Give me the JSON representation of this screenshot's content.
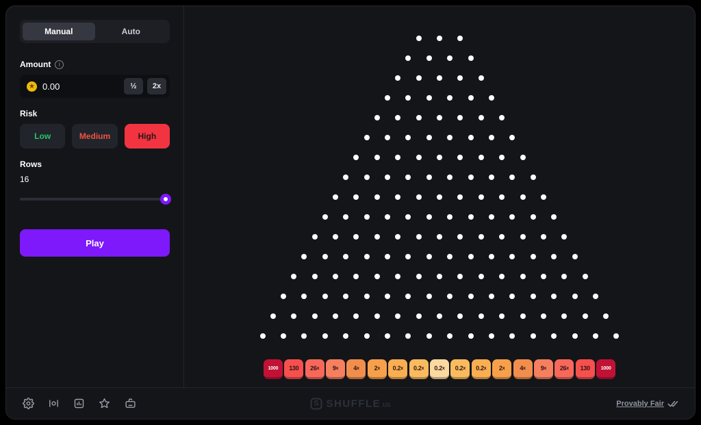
{
  "sidebar": {
    "tabs": [
      {
        "label": "Manual",
        "active": true
      },
      {
        "label": "Auto",
        "active": false
      }
    ],
    "amount": {
      "label": "Amount",
      "value": "0.00",
      "half_button": "½",
      "double_button": "2x"
    },
    "risk": {
      "label": "Risk",
      "options": [
        {
          "label": "Low",
          "selected": false
        },
        {
          "label": "Medium",
          "selected": false
        },
        {
          "label": "High",
          "selected": true
        }
      ]
    },
    "rows": {
      "label": "Rows",
      "value": "16"
    },
    "play_button": "Play"
  },
  "board": {
    "peg_rows": 16,
    "top_row_pegs": 3,
    "peg_color": "#ffffff",
    "buckets": [
      {
        "value": "1000",
        "suffix": "",
        "bg": "#c11236",
        "fg": "#ffffff"
      },
      {
        "value": "130",
        "suffix": "",
        "bg": "#f6504e",
        "fg": "#33150f"
      },
      {
        "value": "26",
        "suffix": "x",
        "bg": "#f8685a",
        "fg": "#33150f"
      },
      {
        "value": "9",
        "suffix": "x",
        "bg": "#f67f5f",
        "fg": "#33150f"
      },
      {
        "value": "4",
        "suffix": "x",
        "bg": "#f28e4d",
        "fg": "#33150f"
      },
      {
        "value": "2",
        "suffix": "x",
        "bg": "#f7a04b",
        "fg": "#33150f"
      },
      {
        "value": "0.2",
        "suffix": "x",
        "bg": "#f9ae52",
        "fg": "#33150f"
      },
      {
        "value": "0.2",
        "suffix": "x",
        "bg": "#fabb5e",
        "fg": "#33150f"
      },
      {
        "value": "0.2",
        "suffix": "x",
        "bg": "#fbd9a0",
        "fg": "#33150f"
      },
      {
        "value": "0.2",
        "suffix": "x",
        "bg": "#fabb5e",
        "fg": "#33150f"
      },
      {
        "value": "0.2",
        "suffix": "x",
        "bg": "#f9ae52",
        "fg": "#33150f"
      },
      {
        "value": "2",
        "suffix": "x",
        "bg": "#f7a04b",
        "fg": "#33150f"
      },
      {
        "value": "4",
        "suffix": "x",
        "bg": "#f28e4d",
        "fg": "#33150f"
      },
      {
        "value": "9",
        "suffix": "x",
        "bg": "#f67f5f",
        "fg": "#33150f"
      },
      {
        "value": "26",
        "suffix": "x",
        "bg": "#f8685a",
        "fg": "#33150f"
      },
      {
        "value": "130",
        "suffix": "",
        "bg": "#f6504e",
        "fg": "#33150f"
      },
      {
        "value": "1000",
        "suffix": "",
        "bg": "#c11236",
        "fg": "#ffffff"
      }
    ]
  },
  "footer": {
    "icons": [
      "settings-gear",
      "sound",
      "stats",
      "favorite-star",
      "hotkeys-keyboard"
    ],
    "logo_text": "SHUFFLE",
    "logo_suffix": ".US",
    "logo_mark": "S",
    "provably_fair_label": "Provably Fair"
  },
  "colors": {
    "accent_purple": "#7d19fa",
    "risk_high_red": "#f23440",
    "risk_low_green": "#26c567",
    "risk_medium_orange": "#f2543e",
    "coin_gold": "#f0b90b",
    "peg_white": "#ffffff",
    "card_background": "#141519"
  }
}
